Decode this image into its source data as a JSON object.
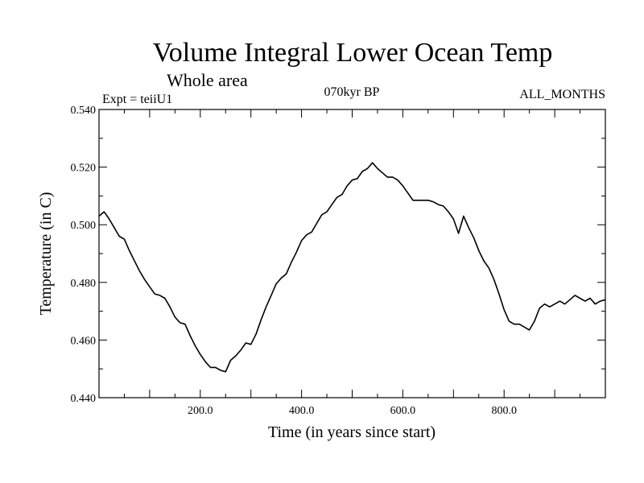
{
  "chart_data": {
    "type": "line",
    "title": "Volume Integral Lower Ocean Temp",
    "subtitle": "Whole area",
    "experiment": "Expt = teiiU1",
    "period": "070kyr BP",
    "months": "ALL_MONTHS",
    "xlabel": "Time (in years since start)",
    "ylabel": "Temperature (in C)",
    "xlim": [
      0,
      1000
    ],
    "ylim": [
      0.44,
      0.54
    ],
    "x_ticks": [
      200,
      400,
      600,
      800
    ],
    "x_tick_labels": [
      "200.0",
      "400.0",
      "600.0",
      "800.0"
    ],
    "y_ticks": [
      0.44,
      0.46,
      0.48,
      0.5,
      0.52,
      0.54
    ],
    "y_tick_labels": [
      "0.440",
      "0.460",
      "0.480",
      "0.500",
      "0.520",
      "0.540"
    ],
    "grid": false,
    "line_color": "#000000",
    "series": [
      {
        "x": [
          0,
          10,
          20,
          30,
          40,
          50,
          60,
          70,
          80,
          90,
          100,
          110,
          120,
          130,
          140,
          150,
          160,
          170,
          180,
          190,
          200,
          210,
          220,
          230,
          240,
          250,
          260,
          270,
          280,
          290,
          300,
          310,
          320,
          330,
          340,
          350,
          360,
          370,
          380,
          390,
          400,
          410,
          420,
          430,
          440,
          450,
          460,
          470,
          480,
          490,
          500,
          510,
          520,
          530,
          540,
          550,
          560,
          570,
          580,
          590,
          600,
          610,
          620,
          630,
          640,
          650,
          660,
          670,
          680,
          690,
          700,
          710,
          720,
          730,
          740,
          750,
          760,
          770,
          780,
          790,
          800,
          810,
          820,
          830,
          840,
          850,
          860,
          870,
          880,
          890,
          900,
          910,
          920,
          930,
          940,
          950,
          960,
          970,
          980,
          990,
          1000
        ],
        "values": [
          0.503,
          0.5045,
          0.502,
          0.499,
          0.496,
          0.495,
          0.491,
          0.4875,
          0.484,
          0.481,
          0.4785,
          0.476,
          0.4755,
          0.4745,
          0.4715,
          0.468,
          0.466,
          0.4655,
          0.4615,
          0.458,
          0.455,
          0.4525,
          0.4505,
          0.4505,
          0.4495,
          0.449,
          0.453,
          0.4545,
          0.4565,
          0.459,
          0.4585,
          0.462,
          0.467,
          0.4715,
          0.4755,
          0.4795,
          0.4815,
          0.483,
          0.487,
          0.4905,
          0.4945,
          0.4965,
          0.4975,
          0.5005,
          0.5035,
          0.5045,
          0.507,
          0.5095,
          0.5105,
          0.5135,
          0.5155,
          0.516,
          0.5185,
          0.5195,
          0.5215,
          0.5195,
          0.518,
          0.5165,
          0.5165,
          0.5155,
          0.5135,
          0.511,
          0.5085,
          0.5085,
          0.5085,
          0.5085,
          0.508,
          0.507,
          0.5065,
          0.5045,
          0.502,
          0.497,
          0.503,
          0.499,
          0.4955,
          0.491,
          0.4875,
          0.485,
          0.481,
          0.476,
          0.4705,
          0.4665,
          0.4655,
          0.4655,
          0.4645,
          0.4635,
          0.4665,
          0.471,
          0.4725,
          0.4715,
          0.4725,
          0.4735,
          0.4725,
          0.474,
          0.4755,
          0.4745,
          0.4735,
          0.4745,
          0.4725,
          0.4735,
          0.474
        ]
      }
    ]
  }
}
